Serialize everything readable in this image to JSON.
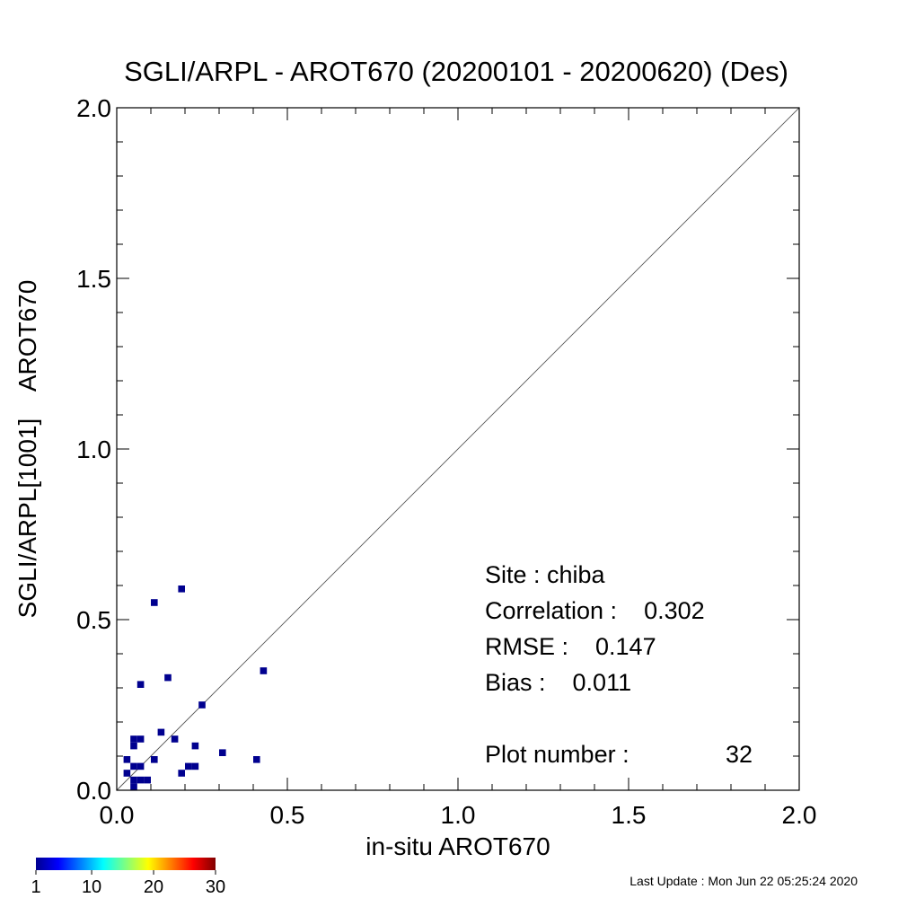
{
  "chart_data": {
    "type": "scatter",
    "title": "SGLI/ARPL - AROT670 (20200101 - 20200620) (Des)",
    "xlabel": "in-situ AROT670",
    "ylabel": "SGLI/ARPL[1001]    AROT670",
    "xlim": [
      0.0,
      2.0
    ],
    "ylim": [
      0.0,
      2.0
    ],
    "x_ticks": [
      "0.0",
      "0.5",
      "1.0",
      "1.5",
      "2.0"
    ],
    "y_ticks": [
      "0.0",
      "0.5",
      "1.0",
      "1.5",
      "2.0"
    ],
    "one_to_one_line": true,
    "grid": false,
    "point_color": "#00008f",
    "points": [
      {
        "x": 0.19,
        "y": 0.59
      },
      {
        "x": 0.11,
        "y": 0.55
      },
      {
        "x": 0.43,
        "y": 0.35
      },
      {
        "x": 0.15,
        "y": 0.33
      },
      {
        "x": 0.07,
        "y": 0.31
      },
      {
        "x": 0.25,
        "y": 0.25
      },
      {
        "x": 0.13,
        "y": 0.17
      },
      {
        "x": 0.05,
        "y": 0.15
      },
      {
        "x": 0.07,
        "y": 0.15
      },
      {
        "x": 0.17,
        "y": 0.15
      },
      {
        "x": 0.05,
        "y": 0.13
      },
      {
        "x": 0.23,
        "y": 0.13
      },
      {
        "x": 0.31,
        "y": 0.11
      },
      {
        "x": 0.03,
        "y": 0.09
      },
      {
        "x": 0.11,
        "y": 0.09
      },
      {
        "x": 0.41,
        "y": 0.09
      },
      {
        "x": 0.05,
        "y": 0.07
      },
      {
        "x": 0.07,
        "y": 0.07
      },
      {
        "x": 0.21,
        "y": 0.07
      },
      {
        "x": 0.23,
        "y": 0.07
      },
      {
        "x": 0.03,
        "y": 0.05
      },
      {
        "x": 0.19,
        "y": 0.05
      },
      {
        "x": 0.05,
        "y": 0.03
      },
      {
        "x": 0.07,
        "y": 0.03
      },
      {
        "x": 0.09,
        "y": 0.03
      },
      {
        "x": 0.05,
        "y": 0.01
      }
    ],
    "annotations": {
      "site": "Site : chiba",
      "correlation": "Correlation :    0.302",
      "rmse": "RMSE :    0.147",
      "bias": "Bias :    0.011",
      "plot_number_label": "Plot number :",
      "plot_number_value": "32"
    },
    "colorbar": {
      "colormap": "jet",
      "range": [
        1,
        30
      ],
      "ticks": [
        "1",
        "10",
        "20",
        "30"
      ]
    },
    "last_update": "Last Update : Mon Jun 22 05:25:24 2020"
  }
}
